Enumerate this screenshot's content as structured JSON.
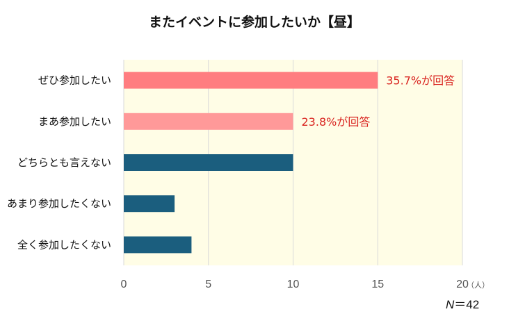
{
  "chart_data": {
    "type": "bar",
    "orientation": "horizontal",
    "title": "またイベントに参加したいか【昼】",
    "categories": [
      "ぜひ参加したい",
      "まあ参加したい",
      "どちらとも言えない",
      "あまり参加したくない",
      "全く参加したくない"
    ],
    "values": [
      15,
      10,
      10,
      3,
      4
    ],
    "colors": [
      "#ff7d80",
      "#ff9999",
      "#1b5e7e",
      "#1b5e7e",
      "#1b5e7e"
    ],
    "data_labels": [
      "35.7%が回答",
      "23.8%が回答",
      "",
      "",
      ""
    ],
    "data_label_color": "#d9231f",
    "xlim": [
      0,
      20
    ],
    "x_ticks": [
      "0",
      "5",
      "10",
      "15",
      "20"
    ],
    "x_unit": "（人）",
    "plot_background": "#fffde6",
    "grid": true,
    "sample_size_label": "N",
    "sample_size_value": "＝42"
  }
}
